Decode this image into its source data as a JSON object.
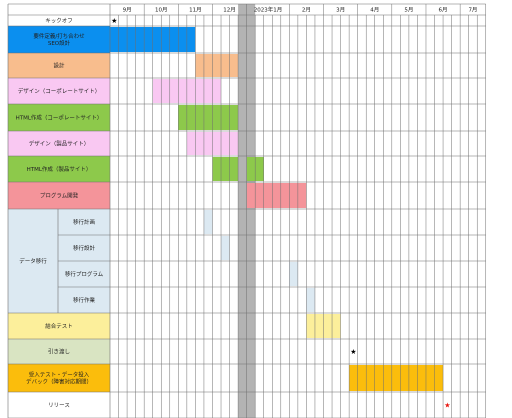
{
  "chart_data": {
    "type": "gantt",
    "months": [
      "",
      "9月",
      "10月",
      "11月",
      "12月",
      "2023年1月",
      "2月",
      "3月",
      "4月",
      "5月",
      "6月",
      "7月"
    ],
    "rows": [
      {
        "label": "キックオフ",
        "fill": "#ffffff",
        "milestone": {
          "col": 0,
          "color": "#000000",
          "symbol": "★"
        }
      },
      {
        "label": "要件定義/打ち合わせ\nSEO設計",
        "fill": "#0b8fef",
        "bars": [
          [
            0,
            9,
            "#0b8fef"
          ]
        ]
      },
      {
        "label": "設計",
        "fill": "#f8bd8d",
        "bars": [
          [
            10,
            14,
            "#f8bd8d"
          ]
        ]
      },
      {
        "label": "デザイン（コーポレートサイト）",
        "fill": "#f9c8f2",
        "bars": [
          [
            5,
            12,
            "#f9c8f2"
          ]
        ]
      },
      {
        "label": "HTML作成（コーポレートサイト）",
        "fill": "#8dc94b",
        "bars": [
          [
            8,
            14,
            "#8dc94b"
          ]
        ]
      },
      {
        "label": "デザイン（製品サイト）",
        "fill": "#f9c8f2",
        "bars": [
          [
            9,
            14,
            "#f9c8f2"
          ]
        ]
      },
      {
        "label": "HTML作成（製品サイト）",
        "fill": "#8dc94b",
        "bars": [
          [
            12,
            14,
            "#8dc94b"
          ],
          [
            16,
            17,
            "#8dc94b"
          ]
        ]
      },
      {
        "label": "プログラム開発",
        "fill": "#f4949a",
        "bars": [
          [
            16,
            22,
            "#f4949a"
          ]
        ]
      },
      {
        "label": "移行計画",
        "fill": "#dce9f2",
        "group": "データ移行",
        "bars": [
          [
            11,
            11,
            "#dce9f2"
          ]
        ]
      },
      {
        "label": "移行設計",
        "fill": "#dce9f2",
        "group": "データ移行",
        "bars": [
          [
            13,
            13,
            "#dce9f2"
          ]
        ]
      },
      {
        "label": "移行プログラム",
        "fill": "#dce9f2",
        "group": "データ移行",
        "bars": [
          [
            21,
            21,
            "#dce9f2"
          ]
        ]
      },
      {
        "label": "移行作業",
        "fill": "#dce9f2",
        "group": "データ移行",
        "bars": [
          [
            23,
            23,
            "#dce9f2"
          ]
        ]
      },
      {
        "label": "結合テスト",
        "fill": "#fcef9b",
        "bars": [
          [
            23,
            26,
            "#fcef9b"
          ]
        ]
      },
      {
        "label": "引き渡し",
        "fill": "#d9e4c2",
        "milestone": {
          "col": 28,
          "color": "#000000",
          "symbol": "★"
        }
      },
      {
        "label": "受入テスト・データ投入\nデバック（障害対応期間）",
        "fill": "#fbbd0c",
        "bars": [
          [
            28,
            38,
            "#fbbd0c"
          ]
        ]
      },
      {
        "label": "リリース",
        "fill": "#ffffff",
        "milestone": {
          "col": 39,
          "color": "#e8160f",
          "symbol": "★"
        }
      }
    ],
    "group_label": "データ移行",
    "shaded_weeks": [
      15
    ],
    "shade_color": "#b3b3b3"
  }
}
